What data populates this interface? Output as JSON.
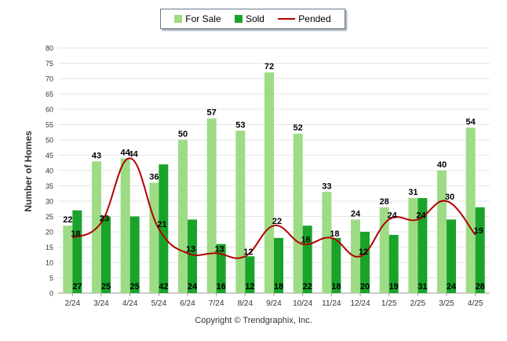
{
  "legend": {
    "for_sale": "For Sale",
    "sold": "Sold",
    "pended": "Pended"
  },
  "colors": {
    "for_sale": "#9ddc85",
    "sold": "#1aa32a",
    "pended": "#b30000",
    "grid": "#e6e6e6"
  },
  "footer": {
    "copyright": "Copyright © Trendgraphix, Inc."
  },
  "chart_data": {
    "type": "bar",
    "title": "",
    "xlabel": "",
    "ylabel": "Number of Homes",
    "ylim": [
      0,
      80
    ],
    "yticks": [
      0,
      5,
      10,
      15,
      20,
      25,
      30,
      35,
      40,
      45,
      50,
      55,
      60,
      65,
      70,
      75,
      80
    ],
    "grid": true,
    "legend_position": "top-center",
    "categories": [
      "2/24",
      "3/24",
      "4/24",
      "5/24",
      "6/24",
      "7/24",
      "8/24",
      "9/24",
      "10/24",
      "11/24",
      "12/24",
      "1/25",
      "2/25",
      "3/25",
      "4/25"
    ],
    "series": [
      {
        "name": "For Sale",
        "type": "bar",
        "values": [
          22,
          43,
          44,
          36,
          50,
          57,
          53,
          72,
          52,
          33,
          24,
          28,
          31,
          40,
          54
        ]
      },
      {
        "name": "Sold",
        "type": "bar",
        "values": [
          27,
          25,
          25,
          42,
          24,
          16,
          12,
          18,
          22,
          18,
          20,
          19,
          31,
          24,
          28
        ]
      },
      {
        "name": "Pended",
        "type": "line",
        "values": [
          18,
          23,
          44,
          21,
          13,
          13,
          12,
          22,
          16,
          18,
          12,
          24,
          24,
          30,
          19
        ]
      }
    ]
  }
}
